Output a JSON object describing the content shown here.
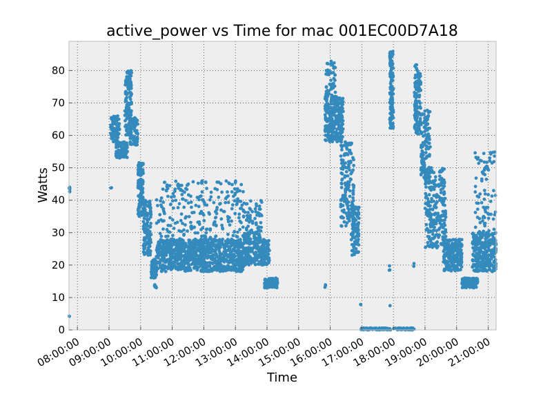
{
  "chart_data": {
    "type": "scatter",
    "title": "active_power vs Time for mac 001EC00D7A18",
    "xlabel": "Time",
    "ylabel": "Watts",
    "xlim": [
      "07:44:00",
      "21:15:00"
    ],
    "ylim": [
      0,
      89
    ],
    "x_ticks": [
      "08:00:00",
      "09:00:00",
      "10:00:00",
      "11:00:00",
      "12:00:00",
      "13:00:00",
      "14:00:00",
      "15:00:00",
      "16:00:00",
      "17:00:00",
      "18:00:00",
      "19:00:00",
      "20:00:00",
      "21:00:00"
    ],
    "y_ticks": [
      0,
      10,
      20,
      30,
      40,
      50,
      60,
      70,
      80
    ],
    "grid": true,
    "legend": "none",
    "series": [
      {
        "color": "#348abd",
        "segments": [
          {
            "start": "07:44",
            "end": "07:46",
            "low": 42,
            "high": 44,
            "n": 6
          },
          {
            "start": "07:44",
            "end": "07:45",
            "low": 4,
            "high": 5,
            "n": 2
          },
          {
            "start": "09:03",
            "end": "09:05",
            "low": 43,
            "high": 44,
            "n": 2
          },
          {
            "start": "09:03",
            "end": "09:20",
            "low": 58,
            "high": 66,
            "n": 90
          },
          {
            "start": "09:13",
            "end": "09:35",
            "low": 53,
            "high": 58,
            "n": 100
          },
          {
            "start": "09:30",
            "end": "09:43",
            "low": 60,
            "high": 80,
            "n": 140
          },
          {
            "start": "09:40",
            "end": "09:55",
            "low": 57,
            "high": 66,
            "n": 80
          },
          {
            "start": "09:55",
            "end": "10:05",
            "low": 35,
            "high": 52,
            "n": 120
          },
          {
            "start": "10:05",
            "end": "10:20",
            "low": 23,
            "high": 40,
            "n": 120
          },
          {
            "start": "10:20",
            "end": "10:30",
            "low": 16,
            "high": 22,
            "n": 80
          },
          {
            "start": "10:25",
            "end": "10:30",
            "low": 13,
            "high": 14,
            "n": 6
          },
          {
            "start": "10:30",
            "end": "13:15",
            "low": 18,
            "high": 28,
            "n": 900
          },
          {
            "start": "10:30",
            "end": "13:15",
            "low": 28,
            "high": 46,
            "n": 240
          },
          {
            "start": "13:15",
            "end": "13:50",
            "low": 20,
            "high": 30,
            "n": 200
          },
          {
            "start": "13:15",
            "end": "13:50",
            "low": 30,
            "high": 40,
            "n": 60
          },
          {
            "start": "13:50",
            "end": "14:05",
            "low": 20,
            "high": 28,
            "n": 80
          },
          {
            "start": "13:55",
            "end": "14:20",
            "low": 13,
            "high": 16,
            "n": 120
          },
          {
            "start": "15:50",
            "end": "15:52",
            "low": 13,
            "high": 14,
            "n": 3
          },
          {
            "start": "15:50",
            "end": "16:25",
            "low": 58,
            "high": 72,
            "n": 260
          },
          {
            "start": "15:52",
            "end": "16:10",
            "low": 72,
            "high": 83,
            "n": 50
          },
          {
            "start": "16:20",
            "end": "16:45",
            "low": 32,
            "high": 58,
            "n": 160
          },
          {
            "start": "16:40",
            "end": "16:55",
            "low": 23,
            "high": 38,
            "n": 100
          },
          {
            "start": "16:55",
            "end": "16:58",
            "low": 7,
            "high": 8,
            "n": 2
          },
          {
            "start": "16:58",
            "end": "17:55",
            "low": 0,
            "high": 0.6,
            "n": 80
          },
          {
            "start": "17:52",
            "end": "17:54",
            "low": 7,
            "high": 8,
            "n": 1
          },
          {
            "start": "17:52",
            "end": "17:54",
            "low": 18,
            "high": 20,
            "n": 3
          },
          {
            "start": "17:53",
            "end": "18:00",
            "low": 62,
            "high": 86,
            "n": 140
          },
          {
            "start": "18:00",
            "end": "18:40",
            "low": 0,
            "high": 0.6,
            "n": 50
          },
          {
            "start": "18:38",
            "end": "18:40",
            "low": 19,
            "high": 21,
            "n": 2
          },
          {
            "start": "18:40",
            "end": "18:52",
            "low": 60,
            "high": 82,
            "n": 120
          },
          {
            "start": "18:52",
            "end": "19:10",
            "low": 45,
            "high": 68,
            "n": 120
          },
          {
            "start": "19:00",
            "end": "19:40",
            "low": 25,
            "high": 50,
            "n": 240
          },
          {
            "start": "19:35",
            "end": "20:10",
            "low": 18,
            "high": 28,
            "n": 220
          },
          {
            "start": "20:10",
            "end": "20:40",
            "low": 13,
            "high": 16,
            "n": 120
          },
          {
            "start": "20:30",
            "end": "21:15",
            "low": 18,
            "high": 30,
            "n": 300
          },
          {
            "start": "20:35",
            "end": "21:15",
            "low": 30,
            "high": 55,
            "n": 80
          }
        ]
      }
    ]
  }
}
